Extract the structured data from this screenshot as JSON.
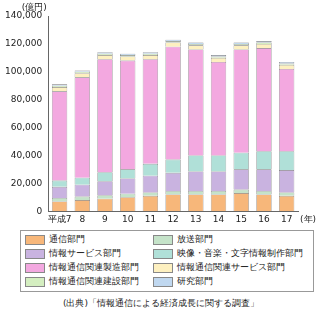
{
  "chart_data": {
    "type": "bar",
    "stacked": true,
    "grid": false,
    "ylabel": "(億円)",
    "xlabel": "(年)",
    "annotations": [
      "(出典)「情報通信による経済成長に関する調査」"
    ],
    "categories": [
      "平成7",
      "8",
      "9",
      "10",
      "11",
      "12",
      "13",
      "14",
      "15",
      "16",
      "17"
    ],
    "ylim": [
      0,
      140000
    ],
    "yticks": [
      0,
      {
        "value": 20000,
        "label": "20,000"
      },
      {
        "value": 40000,
        "label": "40,000"
      },
      {
        "value": 60000,
        "label": "60,000"
      },
      {
        "value": 80000,
        "label": "80,000"
      },
      {
        "value": 100000,
        "label": "100,000"
      },
      {
        "value": 120000,
        "label": "120,000"
      },
      {
        "value": 140000,
        "label": "140,000"
      }
    ],
    "series": [
      {
        "name": "通信部門",
        "color": "#f7b77a",
        "values": [
          7000,
          8000,
          9000,
          10000,
          11000,
          12000,
          12000,
          12000,
          13000,
          12000,
          11000
        ]
      },
      {
        "name": "放送部門",
        "color": "#c5e3c9",
        "values": [
          2500,
          2500,
          2500,
          2500,
          2500,
          2500,
          2500,
          2500,
          2500,
          2500,
          2500
        ]
      },
      {
        "name": "情報サービス部門",
        "color": "#c9b3e0",
        "values": [
          8000,
          8500,
          10000,
          11000,
          12000,
          13000,
          14000,
          14000,
          14500,
          15500,
          16000
        ]
      },
      {
        "name": "映像・音楽・文字情報制作部門",
        "color": "#b0e0d8",
        "values": [
          4500,
          5000,
          6500,
          6500,
          8500,
          9500,
          11500,
          11500,
          12000,
          13000,
          13500
        ]
      },
      {
        "name": "情報通信関連製造部門",
        "color": "#f3a8e0",
        "values": [
          64000,
          72000,
          81000,
          78000,
          75000,
          81000,
          76000,
          67000,
          74000,
          74000,
          59000
        ]
      },
      {
        "name": "情報通信関連サービス部門",
        "color": "#fdf0c0",
        "values": [
          3000,
          3000,
          3000,
          3000,
          3000,
          3000,
          3000,
          3000,
          3000,
          3000,
          3000
        ]
      },
      {
        "name": "情報通信関連建設部門",
        "color": "#d4eec0",
        "values": [
          1000,
          1000,
          1000,
          1000,
          1000,
          1000,
          1000,
          1000,
          1000,
          1000,
          1000
        ]
      },
      {
        "name": "研究部門",
        "color": "#c0d8f0",
        "values": [
          1000,
          1000,
          1000,
          1000,
          1000,
          1000,
          1000,
          1000,
          1000,
          1000,
          1000
        ]
      }
    ]
  }
}
